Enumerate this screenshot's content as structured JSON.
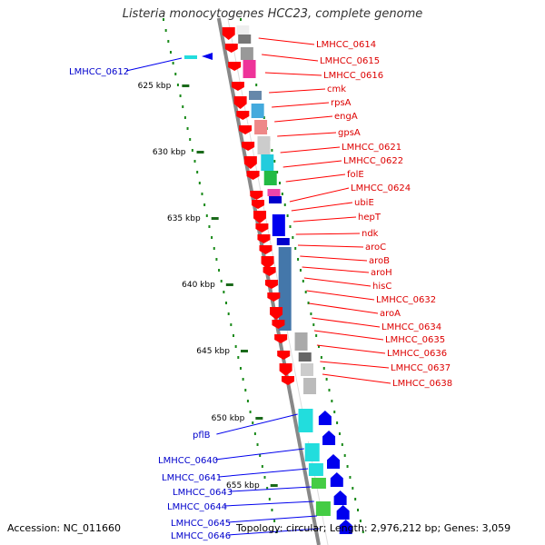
{
  "title": "Listeria monocytogenes HCC23, complete genome",
  "footer": {
    "accession": "Accession: NC_011660",
    "summary": "Topology: circular; Length: 2,976,212 bp; Genes: 3,059"
  },
  "colors": {
    "forward": "#ff0000",
    "reverse": "#0000ee",
    "backbone": "#888888",
    "tick_dots": "#1a8a1a"
  },
  "scale_ticks": [
    "625 kbp",
    "630 kbp",
    "635 kbp",
    "640 kbp",
    "645 kbp",
    "650 kbp",
    "655 kbp"
  ],
  "reverse_genes": [
    "LMHCC_0612",
    "pflB",
    "LMHCC_0640",
    "LMHCC_0641",
    "LMHCC_0643",
    "LMHCC_0644",
    "LMHCC_0645",
    "LMHCC_0646"
  ],
  "forward_genes": [
    "LMHCC_0614",
    "LMHCC_0615",
    "LMHCC_0616",
    "cmk",
    "rpsA",
    "engA",
    "gpsA",
    "LMHCC_0621",
    "LMHCC_0622",
    "folE",
    "LMHCC_0624",
    "ubiE",
    "hepT",
    "ndk",
    "aroC",
    "aroB",
    "aroH",
    "hisC",
    "LMHCC_0632",
    "aroA",
    "LMHCC_0634",
    "LMHCC_0635",
    "LMHCC_0636",
    "LMHCC_0637",
    "LMHCC_0638"
  ]
}
